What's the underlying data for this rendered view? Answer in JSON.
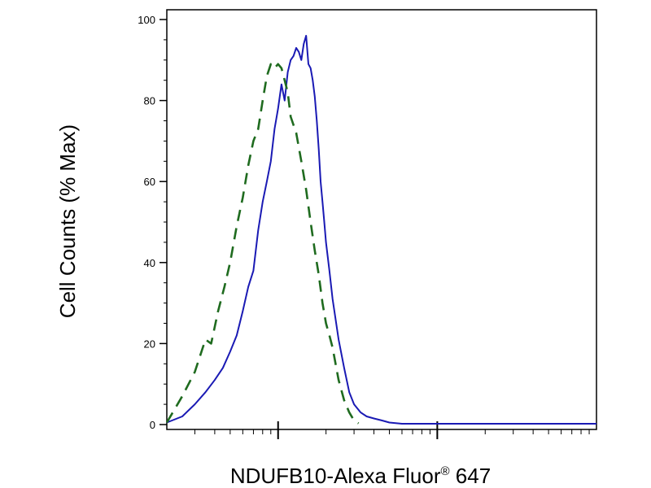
{
  "chart_data": {
    "type": "line",
    "title": "",
    "xlabel": "NDUFB10-Alexa Fluor",
    "xlabel_superscript": "®",
    "xlabel_suffix": " 647",
    "ylabel": "Cell Counts (% Max)",
    "x_scale": "log",
    "xlim": [
      0.2,
      100
    ],
    "ylim": [
      0,
      100
    ],
    "y_ticks": [
      0,
      20,
      40,
      60,
      80,
      100
    ],
    "x_major_ticks": [
      1,
      10
    ],
    "x_minor_ticks": [
      0.3,
      0.4,
      0.5,
      0.6,
      0.7,
      0.8,
      0.9,
      2,
      3,
      4,
      5,
      6,
      7,
      8,
      9,
      20,
      30,
      40,
      50,
      60,
      70,
      80,
      90
    ],
    "grid": false,
    "legend": "none",
    "series": [
      {
        "color": "#1a1ab4",
        "line_style": "solid",
        "x": [
          0.2,
          0.25,
          0.3,
          0.35,
          0.4,
          0.45,
          0.5,
          0.55,
          0.6,
          0.65,
          0.7,
          0.75,
          0.8,
          0.85,
          0.9,
          0.95,
          1.0,
          1.05,
          1.1,
          1.15,
          1.2,
          1.25,
          1.3,
          1.35,
          1.4,
          1.45,
          1.5,
          1.55,
          1.6,
          1.65,
          1.7,
          1.75,
          1.8,
          1.85,
          1.9,
          1.95,
          2.0,
          2.1,
          2.2,
          2.4,
          2.6,
          2.8,
          3.0,
          3.3,
          3.6,
          4.0,
          4.5,
          5.0,
          6.0,
          8.0,
          12,
          20,
          40,
          70,
          100
        ],
        "y": [
          0.5,
          2,
          5,
          8,
          11,
          14,
          18,
          22,
          28,
          34,
          38,
          48,
          55,
          60,
          65,
          73,
          78,
          84,
          80,
          87,
          90,
          91,
          93,
          92,
          90,
          94,
          96,
          89,
          88,
          85,
          81,
          75,
          68,
          60,
          55,
          50,
          45,
          38,
          31,
          21,
          14,
          8,
          5,
          3,
          2,
          1.5,
          1,
          0.5,
          0.2,
          0.2,
          0.2,
          0.2,
          0.2,
          0.2,
          0.2
        ]
      },
      {
        "color": "#1f6b1f",
        "line_style": "dashed",
        "x": [
          0.2,
          0.25,
          0.3,
          0.35,
          0.38,
          0.42,
          0.46,
          0.5,
          0.55,
          0.6,
          0.65,
          0.7,
          0.75,
          0.8,
          0.85,
          0.9,
          0.95,
          1.0,
          1.05,
          1.1,
          1.15,
          1.2,
          1.3,
          1.4,
          1.5,
          1.6,
          1.7,
          1.8,
          1.9,
          2.0,
          2.1,
          2.2,
          2.4,
          2.6,
          2.8,
          3.0,
          3.2
        ],
        "y": [
          0.5,
          7,
          13,
          21,
          20,
          28,
          34,
          40,
          49,
          56,
          64,
          70,
          73,
          80,
          86,
          89,
          88,
          89,
          88,
          85,
          82,
          76,
          72,
          65,
          58,
          50,
          43,
          37,
          30,
          25,
          22,
          19,
          11,
          6,
          3,
          1,
          0.3
        ]
      }
    ]
  }
}
